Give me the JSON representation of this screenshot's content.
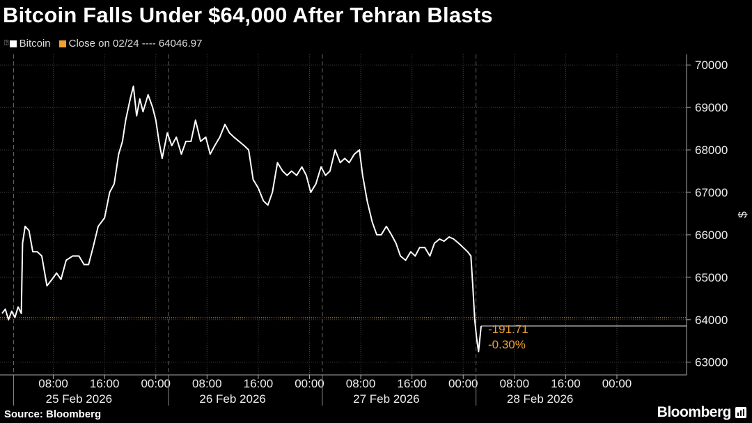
{
  "title": "Bitcoin Falls Under $64,000 After Tehran Blasts",
  "legend": [
    {
      "label": "Bitcoin",
      "color": "#ffffff"
    },
    {
      "label": "Close on 02/24 ---- 64046.97",
      "color": "#f0a030"
    }
  ],
  "source": "Source: Bloomberg",
  "brand": "Bloomberg",
  "chart_data": {
    "type": "line",
    "ylabel": "$",
    "ylim": [
      62700,
      70250
    ],
    "yticks": [
      63000,
      64000,
      65000,
      66000,
      67000,
      68000,
      69000,
      70000
    ],
    "xlim": [
      0,
      96
    ],
    "xticks": [
      {
        "x": 8,
        "label": "08:00"
      },
      {
        "x": 16,
        "label": "16:00"
      },
      {
        "x": 24,
        "label": "00:00"
      },
      {
        "x": 32,
        "label": "08:00"
      },
      {
        "x": 40,
        "label": "16:00"
      },
      {
        "x": 48,
        "label": "00:00"
      },
      {
        "x": 56,
        "label": "08:00"
      },
      {
        "x": 64,
        "label": "16:00"
      },
      {
        "x": 72,
        "label": "00:00"
      },
      {
        "x": 80,
        "label": "08:00"
      },
      {
        "x": 88,
        "label": "16:00"
      },
      {
        "x": 96,
        "label": "00:00"
      }
    ],
    "day_labels": [
      {
        "x": 12,
        "label": "25 Feb 2026"
      },
      {
        "x": 36,
        "label": "26 Feb 2026"
      },
      {
        "x": 60,
        "label": "27 Feb 2026"
      },
      {
        "x": 84,
        "label": "28 Feb 2026"
      }
    ],
    "day_boundaries": [
      1.8,
      26,
      50,
      74
    ],
    "reference_line": {
      "value": 64046.97,
      "color": "#f0a030"
    },
    "annotations": [
      "-191.71",
      "-0.30%"
    ],
    "series": [
      {
        "color": "#ffffff",
        "points": [
          [
            0,
            64150
          ],
          [
            0.5,
            64250
          ],
          [
            1,
            64000
          ],
          [
            1.5,
            64200
          ],
          [
            2,
            64050
          ],
          [
            2.5,
            64300
          ],
          [
            3,
            64150
          ],
          [
            3.2,
            65800
          ],
          [
            3.6,
            66200
          ],
          [
            4.2,
            66100
          ],
          [
            4.8,
            65600
          ],
          [
            5.5,
            65600
          ],
          [
            6.2,
            65500
          ],
          [
            7,
            64800
          ],
          [
            7.8,
            64950
          ],
          [
            8.5,
            65100
          ],
          [
            9.2,
            64950
          ],
          [
            10,
            65400
          ],
          [
            11,
            65500
          ],
          [
            12,
            65500
          ],
          [
            12.8,
            65300
          ],
          [
            13.5,
            65300
          ],
          [
            14.2,
            65700
          ],
          [
            15,
            66200
          ],
          [
            16,
            66400
          ],
          [
            16.8,
            67000
          ],
          [
            17.5,
            67200
          ],
          [
            18.2,
            67900
          ],
          [
            18.8,
            68200
          ],
          [
            19.3,
            68700
          ],
          [
            20,
            69200
          ],
          [
            20.5,
            69500
          ],
          [
            21,
            68800
          ],
          [
            21.5,
            69200
          ],
          [
            22,
            68900
          ],
          [
            22.8,
            69300
          ],
          [
            23.5,
            69000
          ],
          [
            24,
            68700
          ],
          [
            24.5,
            68200
          ],
          [
            25,
            67800
          ],
          [
            25.8,
            68400
          ],
          [
            26.5,
            68100
          ],
          [
            27.2,
            68300
          ],
          [
            28,
            67900
          ],
          [
            28.7,
            68200
          ],
          [
            29.5,
            68200
          ],
          [
            30.2,
            68700
          ],
          [
            31,
            68200
          ],
          [
            31.8,
            68300
          ],
          [
            32.5,
            67900
          ],
          [
            33.2,
            68100
          ],
          [
            34,
            68300
          ],
          [
            34.8,
            68600
          ],
          [
            35.5,
            68400
          ],
          [
            36.2,
            68300
          ],
          [
            37,
            68200
          ],
          [
            37.8,
            68100
          ],
          [
            38.5,
            68000
          ],
          [
            39.2,
            67300
          ],
          [
            40,
            67100
          ],
          [
            40.8,
            66800
          ],
          [
            41.5,
            66700
          ],
          [
            42.2,
            67000
          ],
          [
            43,
            67700
          ],
          [
            43.8,
            67500
          ],
          [
            44.5,
            67400
          ],
          [
            45.2,
            67500
          ],
          [
            46,
            67400
          ],
          [
            46.8,
            67600
          ],
          [
            47.5,
            67400
          ],
          [
            48.2,
            67000
          ],
          [
            49,
            67200
          ],
          [
            49.8,
            67600
          ],
          [
            50.5,
            67400
          ],
          [
            51.2,
            67500
          ],
          [
            52,
            68000
          ],
          [
            52.8,
            67700
          ],
          [
            53.5,
            67800
          ],
          [
            54.2,
            67700
          ],
          [
            55,
            67900
          ],
          [
            55.8,
            68000
          ],
          [
            56.3,
            67400
          ],
          [
            57,
            66800
          ],
          [
            57.8,
            66300
          ],
          [
            58.5,
            66000
          ],
          [
            59.2,
            66000
          ],
          [
            60,
            66200
          ],
          [
            60.8,
            66000
          ],
          [
            61.5,
            65800
          ],
          [
            62.2,
            65500
          ],
          [
            63,
            65400
          ],
          [
            63.8,
            65600
          ],
          [
            64.5,
            65500
          ],
          [
            65.2,
            65700
          ],
          [
            66,
            65700
          ],
          [
            66.8,
            65500
          ],
          [
            67.5,
            65800
          ],
          [
            68.3,
            65900
          ],
          [
            69,
            65850
          ],
          [
            69.8,
            65950
          ],
          [
            70.5,
            65900
          ],
          [
            71.3,
            65800
          ],
          [
            72,
            65700
          ],
          [
            72.7,
            65600
          ],
          [
            73.2,
            65500
          ],
          [
            73.5,
            64800
          ],
          [
            73.8,
            64000
          ],
          [
            74.1,
            63550
          ],
          [
            74.4,
            63250
          ],
          [
            74.8,
            63850
          ]
        ]
      }
    ]
  }
}
